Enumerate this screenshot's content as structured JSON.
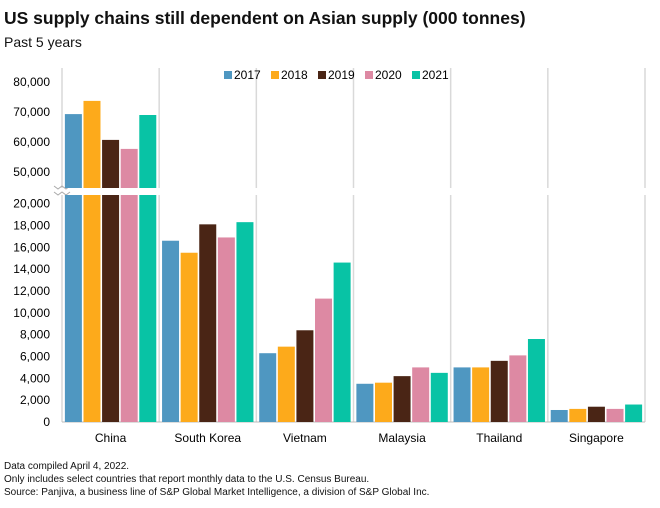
{
  "chart_data": {
    "type": "bar",
    "title": "US supply chains still dependent on Asian supply (000 tonnes)",
    "subtitle": "Past 5 years",
    "categories": [
      "China",
      "South Korea",
      "Vietnam",
      "Malaysia",
      "Thailand",
      "Singapore"
    ],
    "series": [
      {
        "name": "2017",
        "color": "#4f97c1",
        "values": [
          69300,
          16600,
          6300,
          3500,
          5000,
          1100
        ]
      },
      {
        "name": "2018",
        "color": "#fdaa1b",
        "values": [
          73700,
          15500,
          6900,
          3600,
          5000,
          1200
        ]
      },
      {
        "name": "2019",
        "color": "#4a2515",
        "values": [
          60700,
          18100,
          8400,
          4200,
          5600,
          1400
        ]
      },
      {
        "name": "2020",
        "color": "#dd89a3",
        "values": [
          57700,
          16900,
          11300,
          5000,
          6100,
          1200
        ]
      },
      {
        "name": "2021",
        "color": "#08c3a5",
        "values": [
          69000,
          18300,
          14600,
          4500,
          7600,
          1600
        ]
      }
    ],
    "axis_break": true,
    "y_upper_ticks": [
      "50,000",
      "60,000",
      "70,000",
      "80,000"
    ],
    "y_upper_tick_values": [
      50000,
      60000,
      70000,
      80000
    ],
    "y_lower_ticks": [
      "0",
      "2,000",
      "4,000",
      "6,000",
      "8,000",
      "10,000",
      "12,000",
      "14,000",
      "16,000",
      "18,000",
      "20,000"
    ],
    "y_lower_tick_values": [
      0,
      2000,
      4000,
      6000,
      8000,
      10000,
      12000,
      14000,
      16000,
      18000,
      20000
    ],
    "legend_position": "top",
    "grid": false
  },
  "notes": [
    "Data compiled April 4, 2022.",
    "Only includes select countries that report monthly data to the U.S. Census Bureau.",
    "Source: Panjiva, a business line of S&P Global Market Intelligence, a division of S&P Global Inc."
  ]
}
